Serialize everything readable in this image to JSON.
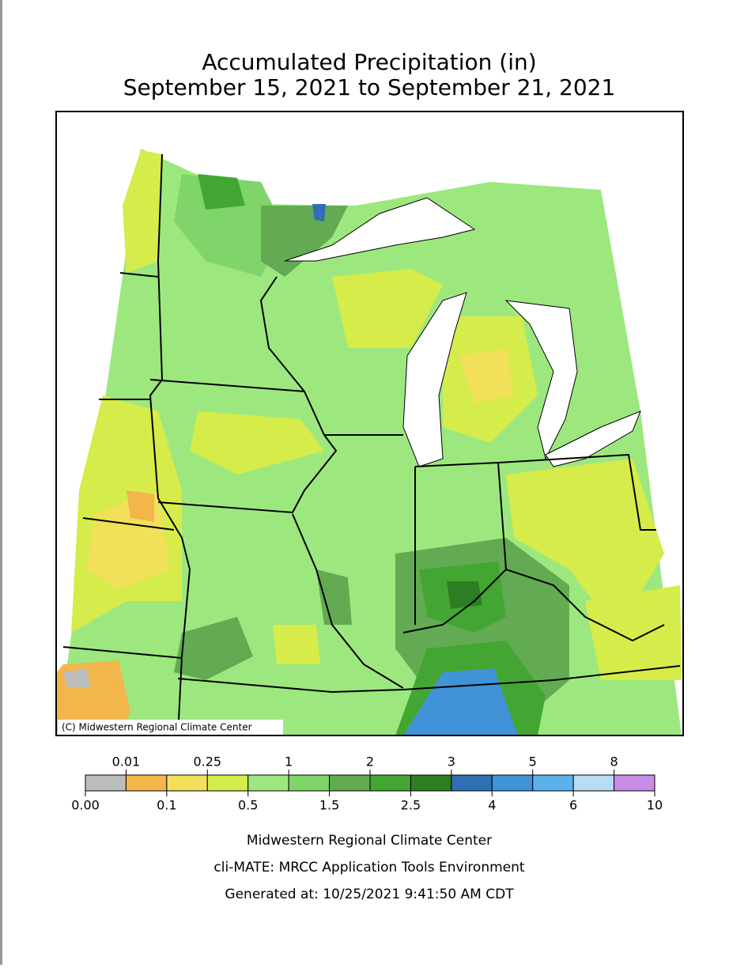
{
  "title": {
    "line1": "Accumulated Precipitation (in)",
    "line2": "September 15, 2021 to September 21, 2021"
  },
  "map": {
    "copyright": "(C) Midwestern Regional Climate Center"
  },
  "legend": {
    "labels": [
      "0.00",
      "0.01",
      "0.1",
      "0.25",
      "0.5",
      "1",
      "1.5",
      "2",
      "2.5",
      "3",
      "4",
      "5",
      "6",
      "8",
      "10"
    ],
    "colors": [
      "#bdbdbd",
      "#f2b64a",
      "#f2e05a",
      "#d6ec4a",
      "#9de87e",
      "#7fd46a",
      "#62ab52",
      "#44a632",
      "#2e7f24",
      "#2f6fb3",
      "#3f93d6",
      "#5cb1ec",
      "#b8dcf5",
      "#c88ee6"
    ]
  },
  "footer": {
    "line1": "Midwestern Regional Climate Center",
    "line2": "cli-MATE: MRCC Application Tools Environment",
    "line3": "Generated at: 10/25/2021 9:41:50 AM CDT"
  }
}
